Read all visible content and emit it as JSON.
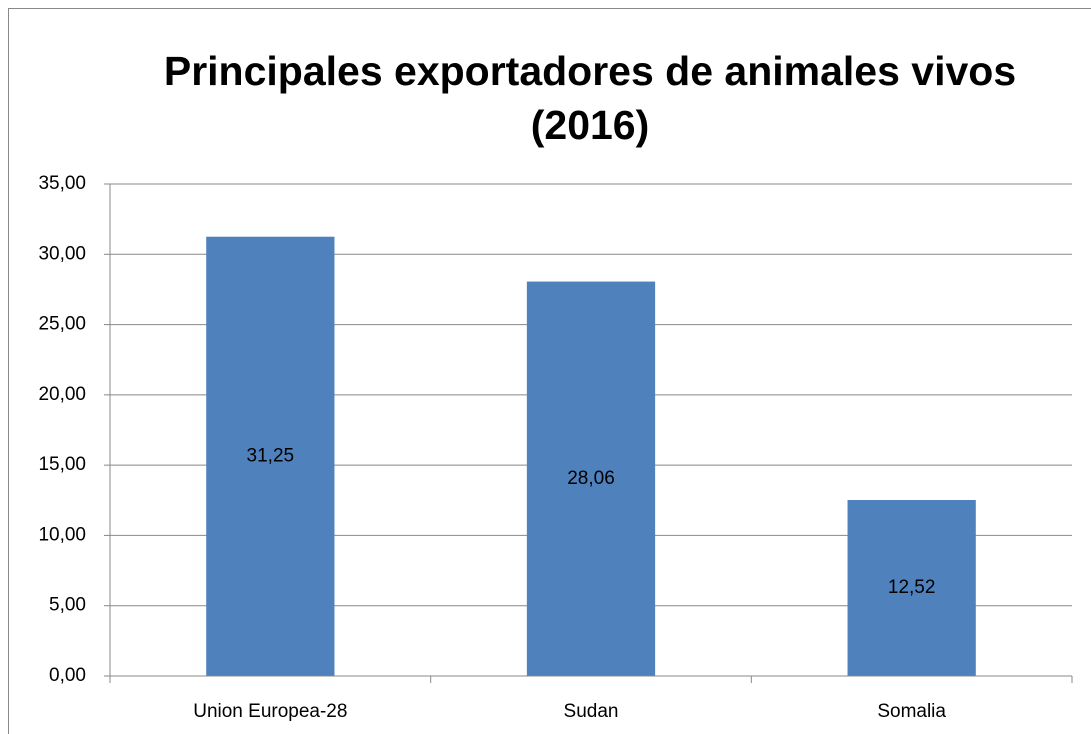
{
  "chart_data": {
    "type": "bar",
    "title": "Principales exportadores de animales vivos (2016)",
    "categories": [
      "Union Europea-28",
      "Sudan",
      "Somalia"
    ],
    "values": [
      31.25,
      28.06,
      12.52
    ],
    "value_labels": [
      "31,25",
      "28,06",
      "12,52"
    ],
    "color": "#4f81bd",
    "ylim": [
      0,
      35
    ],
    "yticks": [
      {
        "value": 0,
        "label": "0,00"
      },
      {
        "value": 5,
        "label": "5,00"
      },
      {
        "value": 10,
        "label": "10,00"
      },
      {
        "value": 15,
        "label": "15,00"
      },
      {
        "value": 20,
        "label": "20,00"
      },
      {
        "value": 25,
        "label": "25,00"
      },
      {
        "value": 30,
        "label": "30,00"
      },
      {
        "value": 35,
        "label": "35,00"
      }
    ],
    "grid": true
  }
}
